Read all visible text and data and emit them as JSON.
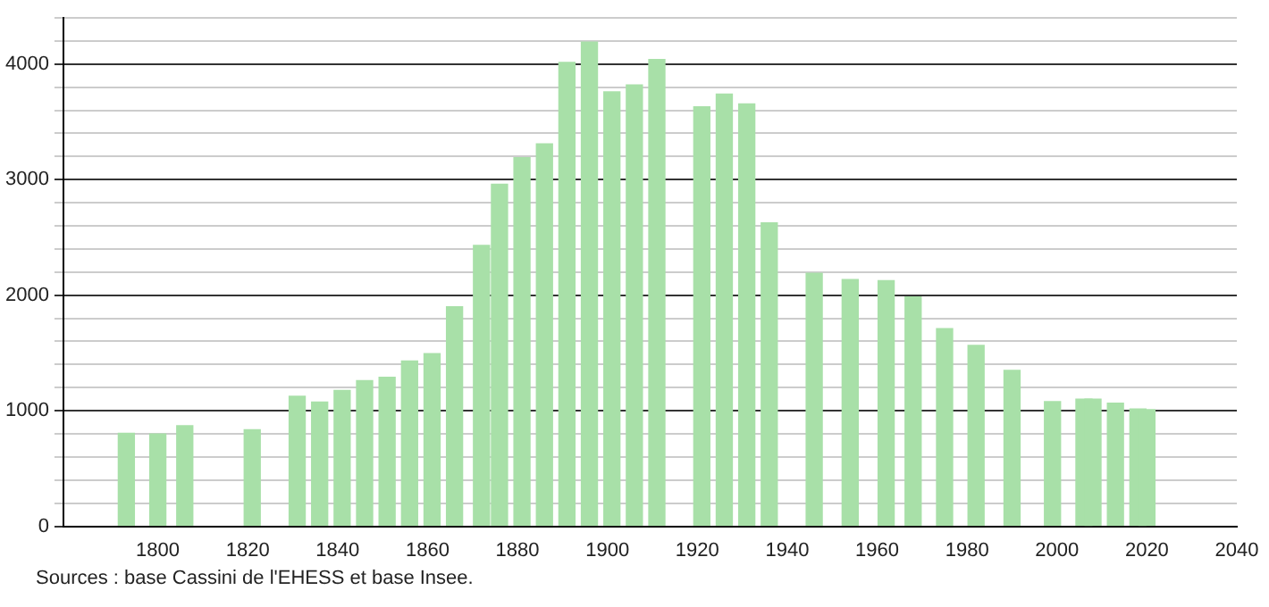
{
  "chart_data": {
    "type": "bar",
    "x": [
      1793,
      1800,
      1806,
      1821,
      1831,
      1836,
      1841,
      1846,
      1851,
      1856,
      1861,
      1866,
      1872,
      1876,
      1881,
      1886,
      1891,
      1896,
      1901,
      1906,
      1911,
      1921,
      1926,
      1931,
      1936,
      1946,
      1954,
      1962,
      1968,
      1975,
      1982,
      1990,
      1999,
      2006,
      2008,
      2013,
      2018,
      2020
    ],
    "values": [
      805,
      800,
      870,
      835,
      1125,
      1075,
      1175,
      1260,
      1290,
      1430,
      1495,
      1900,
      2430,
      2960,
      3190,
      3310,
      4015,
      4190,
      3760,
      3820,
      4040,
      3630,
      3740,
      3655,
      2625,
      2190,
      2135,
      2125,
      1985,
      1710,
      1565,
      1350,
      1080,
      1100,
      1100,
      1065,
      1015,
      1010
    ],
    "color": "#a8e0a8",
    "xlim": [
      1779,
      2040
    ],
    "xticks": [
      1800,
      1820,
      1840,
      1860,
      1880,
      1900,
      1920,
      1940,
      1960,
      1980,
      2000,
      2020,
      2040
    ],
    "ylim": [
      0,
      4400
    ],
    "yticks": [
      0,
      {
        "value": 200,
        "label": null
      },
      {
        "value": 400,
        "label": null
      },
      {
        "value": 600,
        "label": null
      },
      {
        "value": 800,
        "label": null
      },
      1000,
      {
        "value": 1200,
        "label": null
      },
      {
        "value": 1400,
        "label": null
      },
      {
        "value": 1600,
        "label": null
      },
      {
        "value": 1800,
        "label": null
      },
      2000,
      {
        "value": 2200,
        "label": null
      },
      {
        "value": 2400,
        "label": null
      },
      {
        "value": 2600,
        "label": null
      },
      {
        "value": 2800,
        "label": null
      },
      3000,
      {
        "value": 3200,
        "label": null
      },
      {
        "value": 3400,
        "label": null
      },
      {
        "value": 3600,
        "label": null
      },
      {
        "value": 3800,
        "label": null
      },
      4000,
      {
        "value": 4200,
        "label": null
      },
      {
        "value": 4400,
        "label": null
      }
    ],
    "grid": "y",
    "legend": false,
    "annotations": [
      "Sources : base Cassini de l'EHESS et base Insee."
    ]
  }
}
